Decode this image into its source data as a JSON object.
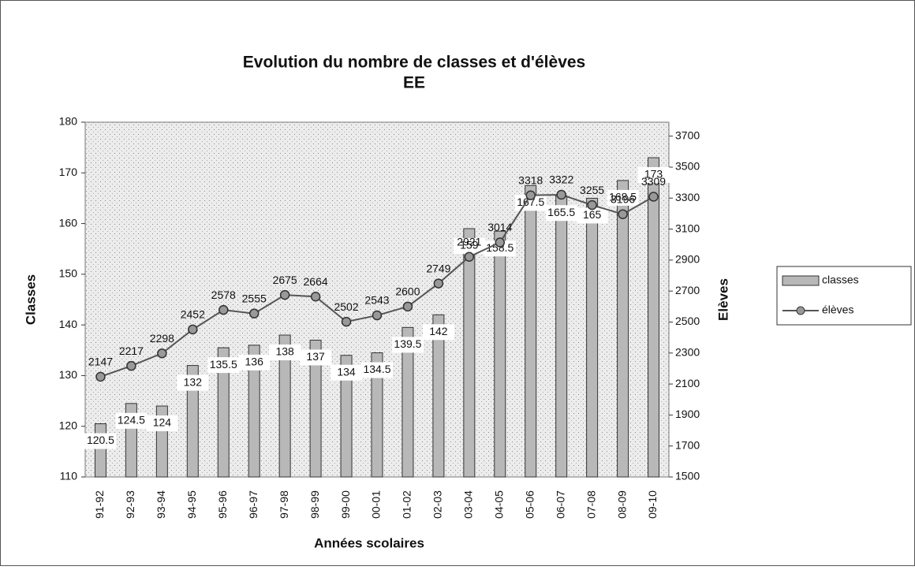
{
  "chart_data": {
    "type": "bar",
    "title": "Evolution du nombre de classes et d'élèves",
    "subtitle": "EE",
    "x_label": "Années scolaires",
    "y_label": "Classes",
    "y2_label": "Elèves",
    "categories": [
      "91-92",
      "92-93",
      "93-94",
      "94-95",
      "95-96",
      "96-97",
      "97-98",
      "98-99",
      "99-00",
      "00-01",
      "01-02",
      "02-03",
      "03-04",
      "04-05",
      "05-06",
      "06-07",
      "07-08",
      "08-09",
      "09-10"
    ],
    "series": [
      {
        "name": "classes",
        "type": "bar",
        "color": "#b8b8b8",
        "values": [
          120.5,
          124.5,
          124,
          132,
          135.5,
          136,
          138,
          137,
          134,
          134.5,
          139.5,
          142,
          159,
          158.5,
          167.5,
          165.5,
          165,
          168.5,
          173
        ]
      },
      {
        "name": "élèves",
        "type": "line",
        "axis": "y2",
        "color": "#555555",
        "values": [
          2147,
          2217,
          2298,
          2452,
          2578,
          2555,
          2675,
          2664,
          2502,
          2543,
          2600,
          2749,
          2921,
          3014,
          3318,
          3322,
          3255,
          3196,
          3309
        ]
      }
    ],
    "ylim": [
      110,
      180
    ],
    "yticks": [
      110,
      120,
      130,
      140,
      150,
      160,
      170,
      180
    ],
    "y2lim": [
      1500,
      3790
    ],
    "y2ticks": [
      1500,
      1700,
      1900,
      2100,
      2300,
      2500,
      2700,
      2900,
      3100,
      3300,
      3500,
      3700
    ],
    "legend": "right"
  }
}
